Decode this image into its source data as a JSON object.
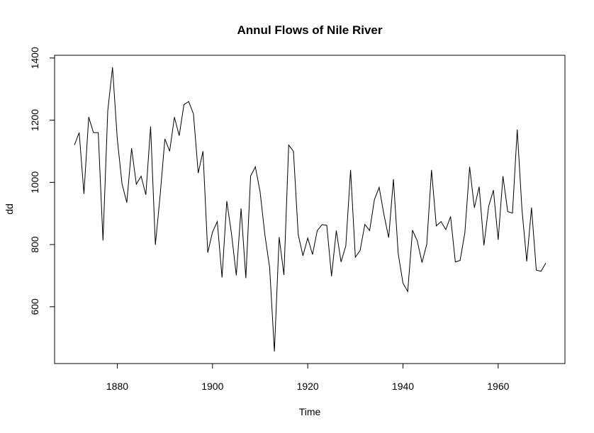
{
  "chart_data": {
    "type": "line",
    "title": "Annul Flows of Nile River",
    "xlabel": "Time",
    "ylabel": "dd",
    "xlim": [
      1871,
      1970
    ],
    "ylim": [
      456,
      1370
    ],
    "xticks": [
      1880,
      1900,
      1920,
      1940,
      1960
    ],
    "yticks": [
      600,
      800,
      1000,
      1200,
      1400
    ],
    "grid": false,
    "series": [
      {
        "color": "#000000",
        "x": [
          1871,
          1872,
          1873,
          1874,
          1875,
          1876,
          1877,
          1878,
          1879,
          1880,
          1881,
          1882,
          1883,
          1884,
          1885,
          1886,
          1887,
          1888,
          1889,
          1890,
          1891,
          1892,
          1893,
          1894,
          1895,
          1896,
          1897,
          1898,
          1899,
          1900,
          1901,
          1902,
          1903,
          1904,
          1905,
          1906,
          1907,
          1908,
          1909,
          1910,
          1911,
          1912,
          1913,
          1914,
          1915,
          1916,
          1917,
          1918,
          1919,
          1920,
          1921,
          1922,
          1923,
          1924,
          1925,
          1926,
          1927,
          1928,
          1929,
          1930,
          1931,
          1932,
          1933,
          1934,
          1935,
          1936,
          1937,
          1938,
          1939,
          1940,
          1941,
          1942,
          1943,
          1944,
          1945,
          1946,
          1947,
          1948,
          1949,
          1950,
          1951,
          1952,
          1953,
          1954,
          1955,
          1956,
          1957,
          1958,
          1959,
          1960,
          1961,
          1962,
          1963,
          1964,
          1965,
          1966,
          1967,
          1968,
          1969,
          1970
        ],
        "values": [
          1120,
          1160,
          963,
          1210,
          1160,
          1160,
          813,
          1230,
          1370,
          1140,
          995,
          935,
          1110,
          994,
          1020,
          960,
          1180,
          799,
          958,
          1140,
          1100,
          1210,
          1150,
          1250,
          1260,
          1220,
          1030,
          1100,
          774,
          840,
          874,
          694,
          940,
          833,
          701,
          916,
          692,
          1020,
          1050,
          969,
          831,
          726,
          456,
          824,
          702,
          1120,
          1100,
          832,
          764,
          821,
          768,
          845,
          864,
          862,
          698,
          845,
          744,
          796,
          1040,
          759,
          781,
          865,
          845,
          944,
          984,
          897,
          822,
          1010,
          771,
          676,
          649,
          846,
          812,
          742,
          801,
          1040,
          860,
          874,
          848,
          890,
          744,
          749,
          838,
          1050,
          918,
          986,
          797,
          923,
          975,
          815,
          1020,
          906,
          901,
          1170,
          912,
          746,
          919,
          718,
          714,
          740
        ]
      }
    ]
  }
}
